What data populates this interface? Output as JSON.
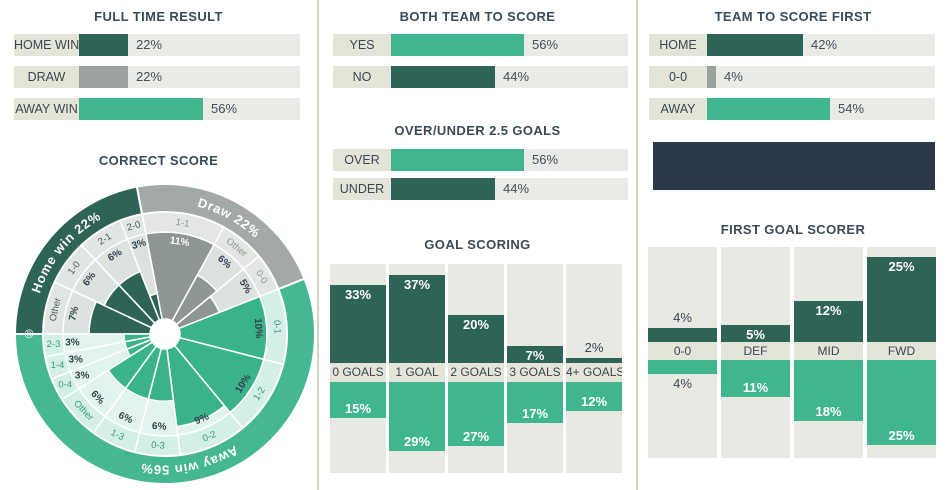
{
  "colors": {
    "dark_teal": "#2e6456",
    "green": "#40b68e",
    "gray": "#9ba19c",
    "bar_track": "#eaeae6",
    "label_cell": "#e5e4d8",
    "title_text": "#3b4a57",
    "value_text": "#44505a",
    "banner_navy": "#2b3948",
    "divider": "#d2d4bf",
    "white": "#ffffff"
  },
  "chart_data": [
    {
      "id": "full_time_result",
      "type": "hbar",
      "title": "FULL TIME RESULT",
      "xlim": [
        0,
        100
      ],
      "rows": [
        {
          "label": "HOME WIN",
          "value": 22,
          "display": "22%",
          "color": "#2e6456"
        },
        {
          "label": "DRAW",
          "value": 22,
          "display": "22%",
          "color": "#9ba19c"
        },
        {
          "label": "AWAY WIN",
          "value": 56,
          "display": "56%",
          "color": "#40b68e"
        }
      ]
    },
    {
      "id": "correct_score",
      "type": "sunburst",
      "title": "CORRECT SCORE",
      "start_bearing": 270,
      "max_scale_pct": 10,
      "center_mark": "®",
      "groups": [
        {
          "label": "Home win",
          "value": 22,
          "display": "Home win 22%",
          "scheme": {
            "outer": "#2e6456",
            "bar": "#2e6456",
            "band": "#e0e6e2",
            "inner": "#dce3df",
            "score_text": "#4d5a61"
          },
          "scores": [
            {
              "label": "Other",
              "value": 7,
              "display": "7%"
            },
            {
              "label": "1-0",
              "value": 6,
              "display": "6%"
            },
            {
              "label": "2-1",
              "value": 6,
              "display": "6%"
            },
            {
              "label": "2-0",
              "value": 3,
              "display": "3%"
            }
          ]
        },
        {
          "label": "Draw",
          "value": 22,
          "display": "Draw 22%",
          "scheme": {
            "outer": "#a3a9a4",
            "bar": "#8e9792",
            "band": "#e3e6e2",
            "inner": "#dee2df",
            "score_text": "#8f9893"
          },
          "scores": [
            {
              "label": "1-1",
              "value": 11,
              "display": "11%"
            },
            {
              "label": "Other",
              "value": 6,
              "display": "6%"
            },
            {
              "label": "0-0",
              "value": 5,
              "display": "5%"
            }
          ]
        },
        {
          "label": "Away win",
          "value": 56,
          "display": "Away win 56%",
          "scheme": {
            "outer": "#45b893",
            "bar": "#3bb38a",
            "band": "#d4efe3",
            "inner": "#e1f4eb",
            "score_text": "#36a07d"
          },
          "scores": [
            {
              "label": "0-1",
              "value": 10,
              "display": "10%"
            },
            {
              "label": "1-2",
              "value": 10,
              "display": "10%"
            },
            {
              "label": "0-2",
              "value": 9,
              "display": "9%"
            },
            {
              "label": "0-3",
              "value": 6,
              "display": "6%"
            },
            {
              "label": "1-3",
              "value": 6,
              "display": "6%"
            },
            {
              "label": "Other",
              "value": 6,
              "display": "6%"
            },
            {
              "label": "0-4",
              "value": 3,
              "display": "3%",
              "horizontal": true
            },
            {
              "label": "1-4",
              "value": 3,
              "display": "3%",
              "horizontal": true
            },
            {
              "label": "2-3",
              "value": 3,
              "display": "3%",
              "horizontal": true
            }
          ]
        }
      ]
    },
    {
      "id": "both_team_to_score",
      "type": "hbar",
      "title": "BOTH TEAM TO SCORE",
      "xlim": [
        0,
        100
      ],
      "rows": [
        {
          "label": "YES",
          "value": 56,
          "display": "56%",
          "color": "#40b68e"
        },
        {
          "label": "NO",
          "value": 44,
          "display": "44%",
          "color": "#2e6456"
        }
      ]
    },
    {
      "id": "over_under_2_5_goals",
      "type": "hbar",
      "title": "OVER/UNDER 2.5 GOALS",
      "xlim": [
        0,
        100
      ],
      "rows": [
        {
          "label": "OVER",
          "value": 56,
          "display": "56%",
          "color": "#40b68e"
        },
        {
          "label": "UNDER",
          "value": 44,
          "display": "44%",
          "color": "#2e6456"
        }
      ]
    },
    {
      "id": "goal_scoring",
      "type": "diverging_columns",
      "title": "GOAL SCORING",
      "categories": [
        "0 GOALS",
        "1 GOAL",
        "2 GOALS",
        "3 GOALS",
        "4+ GOALS"
      ],
      "series": [
        {
          "name": "top",
          "color": "#2e6456",
          "values": [
            33,
            37,
            20,
            7,
            2
          ],
          "displays": [
            "33%",
            "37%",
            "20%",
            "7%",
            "2%"
          ]
        },
        {
          "name": "bottom",
          "color": "#40b68e",
          "values": [
            15,
            29,
            27,
            17,
            12
          ],
          "displays": [
            "15%",
            "29%",
            "27%",
            "17%",
            "12%"
          ]
        }
      ]
    },
    {
      "id": "team_to_score_first",
      "type": "hbar",
      "title": "TEAM TO SCORE FIRST",
      "xlim": [
        0,
        100
      ],
      "rows": [
        {
          "label": "HOME",
          "value": 42,
          "display": "42%",
          "color": "#2e6456"
        },
        {
          "label": "0-0",
          "value": 4,
          "display": "4%",
          "color": "#9ba19c"
        },
        {
          "label": "AWAY",
          "value": 54,
          "display": "54%",
          "color": "#40b68e"
        }
      ]
    },
    {
      "id": "first_goal_scorer",
      "type": "diverging_columns",
      "title": "FIRST GOAL SCORER",
      "categories": [
        "0-0",
        "DEF",
        "MID",
        "FWD"
      ],
      "series": [
        {
          "name": "top",
          "color": "#2e6456",
          "values": [
            4,
            5,
            12,
            25
          ],
          "displays": [
            "4%",
            "5%",
            "12%",
            "25%"
          ]
        },
        {
          "name": "bottom",
          "color": "#40b68e",
          "values": [
            4,
            11,
            18,
            25
          ],
          "displays": [
            "4%",
            "11%",
            "18%",
            "25%"
          ]
        }
      ]
    }
  ]
}
